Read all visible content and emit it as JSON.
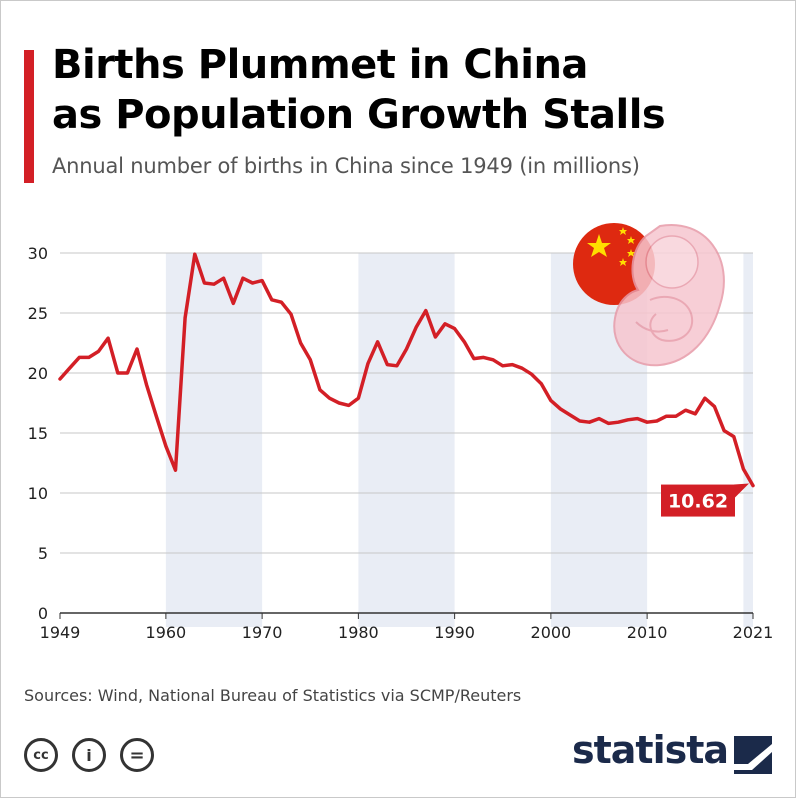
{
  "header": {
    "title_line1": "Births Plummet in China",
    "title_line2": "as Population Growth Stalls",
    "subtitle": "Annual number of births in China since 1949 (in millions)"
  },
  "footer": {
    "source": "Sources: Wind, National Bureau of Statistics via SCMP/Reuters",
    "brand": "statista",
    "license_icons": [
      "cc-icon",
      "by-icon",
      "nd-icon"
    ],
    "license_labels": [
      "cc",
      "i",
      "="
    ]
  },
  "colors": {
    "accent": "#d31f26",
    "band": "#e9edf5",
    "grid": "#c7c7c7",
    "brand": "#1b2a4a"
  },
  "chart_data": {
    "type": "line",
    "title": "Births Plummet in China as Population Growth Stalls",
    "subtitle": "Annual number of births in China since 1949 (in millions)",
    "xlabel": "",
    "ylabel": "",
    "xlim": [
      1949,
      2021
    ],
    "ylim": [
      0,
      30
    ],
    "yticks": [
      0,
      5,
      10,
      15,
      20,
      25,
      30
    ],
    "xticks": [
      1949,
      1960,
      1970,
      1980,
      1990,
      2000,
      2010,
      2021
    ],
    "decade_bands": [
      [
        1960,
        1970
      ],
      [
        1980,
        1990
      ],
      [
        2000,
        2010
      ],
      [
        2020,
        2021
      ]
    ],
    "grid": true,
    "series": [
      {
        "name": "Births (millions)",
        "x": [
          1949,
          1950,
          1951,
          1952,
          1953,
          1954,
          1955,
          1956,
          1957,
          1958,
          1959,
          1960,
          1961,
          1962,
          1963,
          1964,
          1965,
          1966,
          1967,
          1968,
          1969,
          1970,
          1971,
          1972,
          1973,
          1974,
          1975,
          1976,
          1977,
          1978,
          1979,
          1980,
          1981,
          1982,
          1983,
          1984,
          1985,
          1986,
          1987,
          1988,
          1989,
          1990,
          1991,
          1992,
          1993,
          1994,
          1995,
          1996,
          1997,
          1998,
          1999,
          2000,
          2001,
          2002,
          2003,
          2004,
          2005,
          2006,
          2007,
          2008,
          2009,
          2010,
          2011,
          2012,
          2013,
          2014,
          2015,
          2016,
          2017,
          2018,
          2019,
          2020,
          2021
        ],
        "values": [
          19.5,
          20.4,
          21.3,
          21.3,
          21.8,
          22.9,
          20.0,
          20.0,
          22.0,
          19.0,
          16.4,
          13.9,
          11.9,
          24.6,
          29.9,
          27.5,
          27.4,
          27.9,
          25.8,
          27.9,
          27.5,
          27.7,
          26.1,
          25.9,
          24.9,
          22.5,
          21.1,
          18.6,
          17.9,
          17.5,
          17.3,
          17.9,
          20.8,
          22.6,
          20.7,
          20.6,
          22.0,
          23.8,
          25.2,
          23.0,
          24.1,
          23.7,
          22.6,
          21.2,
          21.3,
          21.1,
          20.6,
          20.7,
          20.4,
          19.9,
          19.1,
          17.7,
          17.0,
          16.5,
          16.0,
          15.9,
          16.2,
          15.8,
          15.9,
          16.1,
          16.2,
          15.9,
          16.0,
          16.4,
          16.4,
          16.9,
          16.6,
          17.9,
          17.2,
          15.2,
          14.7,
          12.0,
          10.62
        ]
      }
    ],
    "annotations": [
      {
        "text": "10.62",
        "x": 2021,
        "y": 10.62
      }
    ]
  }
}
